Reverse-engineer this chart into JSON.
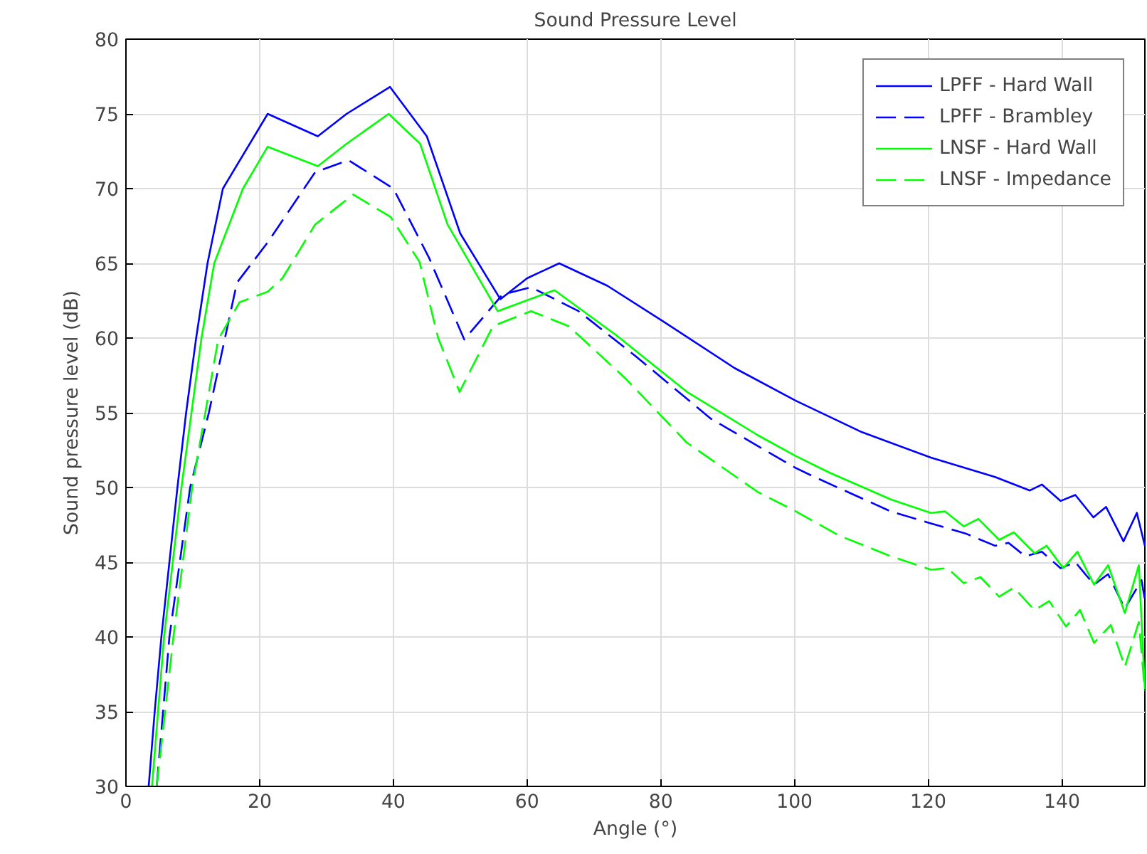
{
  "chart_data": {
    "type": "line",
    "title": "Sound Pressure Level",
    "xlabel": "Angle (°)",
    "ylabel": "Sound pressure level (dB)",
    "xlim": [
      0,
      152.4
    ],
    "ylim": [
      30,
      80
    ],
    "xticks": [
      0,
      20,
      40,
      60,
      80,
      100,
      120,
      140
    ],
    "yticks": [
      30,
      35,
      40,
      45,
      50,
      55,
      60,
      65,
      70,
      75,
      80
    ],
    "grid": true,
    "legend": "top right",
    "marker": "none",
    "series": [
      {
        "name": "LPFF - Hard Wall",
        "color": "#0000ff",
        "line_style": "solid",
        "x": [
          3.4,
          4.3,
          5.3,
          6.5,
          7.7,
          9.0,
          10.5,
          12.2,
          14.5,
          21.2,
          28.7,
          33,
          39.5,
          45,
          50,
          56,
          60,
          64.8,
          72,
          80.4,
          91,
          100.2,
          110.1,
          120.4,
          130,
          135.2,
          137,
          139.8,
          142,
          144.7,
          146.6,
          149.2,
          151.2,
          152.4
        ],
        "values": [
          30,
          35,
          40,
          45,
          50,
          55,
          60,
          65,
          70,
          75.0,
          73.5,
          75,
          76.8,
          73.5,
          67,
          62.6,
          64,
          65.0,
          63.5,
          61.1,
          58.0,
          55.8,
          53.7,
          52.0,
          50.7,
          49.8,
          50.2,
          49.1,
          49.5,
          48.0,
          48.7,
          46.4,
          48.3,
          46.1
        ]
      },
      {
        "name": "LPFF - Brambley",
        "color": "#0000ff",
        "line_style": "dashed",
        "x": [
          4.6,
          6.5,
          9.6,
          12.4,
          16.6,
          21.2,
          28.3,
          33.3,
          40,
          45.3,
          50.6,
          56.3,
          60.6,
          67.7,
          76.2,
          87.5,
          100.2,
          103,
          114.4,
          120.4,
          125.7,
          130,
          132,
          134.5,
          137,
          139.8,
          142,
          144.8,
          146.9,
          149.4,
          151.9,
          152.4
        ],
        "values": [
          30,
          40,
          50,
          55,
          63.7,
          66.4,
          71.1,
          71.9,
          70.0,
          65.4,
          59.9,
          62.9,
          63.4,
          61.8,
          58.8,
          54.6,
          51.3,
          50.7,
          48.4,
          47.6,
          46.9,
          46.1,
          46.3,
          45.4,
          45.7,
          44.6,
          45.0,
          43.5,
          44.2,
          41.9,
          43.8,
          42.5
        ]
      },
      {
        "name": "LNSF - Hard Wall",
        "color": "#00ff00",
        "line_style": "solid",
        "x": [
          3.9,
          5.7,
          8.3,
          11.3,
          13.2,
          17.5,
          21.2,
          28.7,
          33,
          39.3,
          44,
          48.1,
          55.6,
          64.1,
          73.3,
          83.9,
          94.5,
          100.2,
          105.2,
          114.4,
          120.4,
          122.5,
          125.3,
          127.5,
          130.6,
          132.8,
          135.9,
          137.7,
          140.2,
          142.3,
          144.8,
          146.9,
          149.4,
          151.5,
          152.4
        ],
        "values": [
          30,
          40,
          50,
          60,
          65,
          70,
          72.8,
          71.5,
          73,
          75.0,
          73,
          67.6,
          61.8,
          63.2,
          60.2,
          56.4,
          53.5,
          52.1,
          51.0,
          49.2,
          48.3,
          48.4,
          47.4,
          47.9,
          46.5,
          47.0,
          45.6,
          46.1,
          44.6,
          45.7,
          43.5,
          44.8,
          41.6,
          44.8,
          36.5
        ]
      },
      {
        "name": "LNSF - Impedance",
        "color": "#00ff00",
        "line_style": "dashed",
        "x": [
          4.6,
          7.1,
          9.9,
          13.8,
          17,
          21.2,
          23.4,
          28.3,
          34,
          39.6,
          43.9,
          46.7,
          49.9,
          54.9,
          60.6,
          66.2,
          74.7,
          83.9,
          94.5,
          100.2,
          106.6,
          114.4,
          120.4,
          122.9,
          125.3,
          127.8,
          130.6,
          132.8,
          135.9,
          138.1,
          140.6,
          142.7,
          144.8,
          147.3,
          149.4,
          151.5,
          152.4
        ],
        "values": [
          30,
          40,
          50,
          59.9,
          62.4,
          63.1,
          64.0,
          67.6,
          69.6,
          68.1,
          65.1,
          60.0,
          56.4,
          60.8,
          61.8,
          60.8,
          57.3,
          53.0,
          49.7,
          48.4,
          46.8,
          45.4,
          44.5,
          44.6,
          43.6,
          44.0,
          42.7,
          43.3,
          41.8,
          42.4,
          40.7,
          41.8,
          39.6,
          40.8,
          38.0,
          41.0,
          36.4
        ]
      }
    ]
  }
}
